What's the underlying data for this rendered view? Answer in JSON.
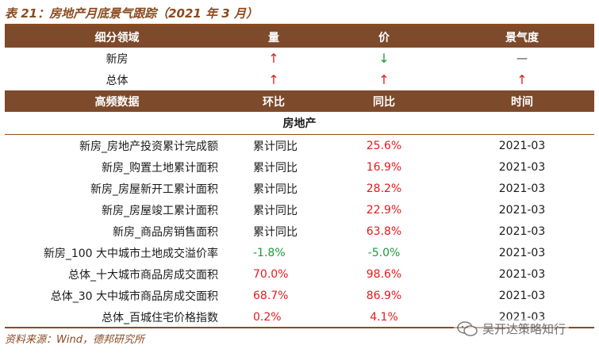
{
  "title": "表 21：房地产月底景气跟踪（2021 年 3 月）",
  "summary": {
    "headers": [
      "细分领域",
      "量",
      "价",
      "景气度"
    ],
    "rows": [
      {
        "label": "新房",
        "volume": "↑",
        "volume_dir": "up",
        "price": "↓",
        "price_dir": "down",
        "sentiment": "—",
        "sentiment_dir": "flat"
      },
      {
        "label": "总体",
        "volume": "↑",
        "volume_dir": "up",
        "price": "↑",
        "price_dir": "up",
        "sentiment": "↑",
        "sentiment_dir": "up"
      }
    ]
  },
  "hf": {
    "headers": [
      "高频数据",
      "环比",
      "同比",
      "时间"
    ],
    "section": "房地产",
    "rows": [
      {
        "name": "新房_房地产投资累计完成额",
        "mom": "累计同比",
        "mom_color": "black",
        "yoy": "25.6%",
        "yoy_color": "red",
        "date": "2021-03"
      },
      {
        "name": "新房_购置土地累计面积",
        "mom": "累计同比",
        "mom_color": "black",
        "yoy": "16.9%",
        "yoy_color": "red",
        "date": "2021-03"
      },
      {
        "name": "新房_房屋新开工累计面积",
        "mom": "累计同比",
        "mom_color": "black",
        "yoy": "28.2%",
        "yoy_color": "red",
        "date": "2021-03"
      },
      {
        "name": "新房_房屋竣工累计面积",
        "mom": "累计同比",
        "mom_color": "black",
        "yoy": "22.9%",
        "yoy_color": "red",
        "date": "2021-03"
      },
      {
        "name": "新房_商品房销售面积",
        "mom": "累计同比",
        "mom_color": "black",
        "yoy": "63.8%",
        "yoy_color": "red",
        "date": "2021-03"
      },
      {
        "name": "新房_100 大中城市土地成交溢价率",
        "mom": "-1.8%",
        "mom_color": "green",
        "yoy": "-5.0%",
        "yoy_color": "green",
        "date": "2021-03"
      },
      {
        "name": "总体_十大城市商品房成交面积",
        "mom": "70.0%",
        "mom_color": "red",
        "yoy": "98.6%",
        "yoy_color": "red",
        "date": "2021-03"
      },
      {
        "name": "总体_30 大中城市商品房成交面积",
        "mom": "68.7%",
        "mom_color": "red",
        "yoy": "86.9%",
        "yoy_color": "red",
        "date": "2021-03"
      },
      {
        "name": "总体_百城住宅价格指数",
        "mom": "0.2%",
        "mom_color": "red",
        "yoy": "4.1%",
        "yoy_color": "red",
        "date": "2021-03"
      }
    ]
  },
  "source": "资料来源：Wind，德邦研究所",
  "watermark": "吴开达策略知行",
  "colors": {
    "header_bg": "#7D4A2B",
    "accent": "#8B4A1F",
    "up": "#e41a1c",
    "down": "#1a9a3a"
  }
}
